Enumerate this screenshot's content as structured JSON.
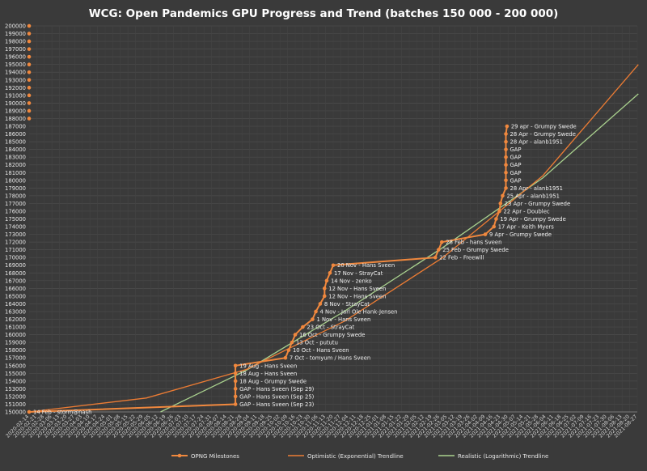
{
  "chart_data": {
    "type": "line",
    "title": "WCG: Open Pandemics GPU Progress and Trend (batches 150 000 - 200 000)",
    "xlabel": "",
    "ylabel": "",
    "ylim": [
      150000,
      200000
    ],
    "grid": true,
    "legend_position": "bottom",
    "y_ticks": [
      150000,
      151000,
      152000,
      153000,
      154000,
      155000,
      156000,
      157000,
      158000,
      159000,
      160000,
      161000,
      162000,
      163000,
      164000,
      165000,
      166000,
      167000,
      168000,
      169000,
      170000,
      171000,
      172000,
      173000,
      174000,
      175000,
      176000,
      177000,
      178000,
      179000,
      180000,
      181000,
      182000,
      183000,
      184000,
      185000,
      186000,
      187000,
      188000,
      189000,
      190000,
      191000,
      192000,
      193000,
      194000,
      195000,
      196000,
      197000,
      198000,
      199000,
      200000
    ],
    "x_tick_labels": [
      "2020-02-14",
      "2020-02-21",
      "2020-02-28",
      "2020-03-06",
      "2020-03-13",
      "2020-03-20",
      "2020-03-27",
      "2020-04-03",
      "2020-04-10",
      "2020-04-17",
      "2020-04-24",
      "2020-05-01",
      "2020-05-08",
      "2020-05-15",
      "2020-05-22",
      "2020-05-29",
      "2020-06-05",
      "2020-06-12",
      "2020-06-19",
      "2020-06-26",
      "2020-07-03",
      "2020-07-10",
      "2020-07-17",
      "2020-07-24",
      "2020-07-31",
      "2020-08-07",
      "2020-08-14",
      "2020-08-21",
      "2020-08-28",
      "2020-09-04",
      "2020-09-11",
      "2020-09-18",
      "2020-09-25",
      "2020-10-02",
      "2020-10-09",
      "2020-10-16",
      "2020-10-23",
      "2020-10-30",
      "2020-11-06",
      "2020-11-13",
      "2020-11-20",
      "2020-11-27",
      "2020-12-04",
      "2020-12-11",
      "2020-12-18",
      "2020-12-25",
      "2021-01-01",
      "2021-01-08",
      "2021-01-15",
      "2021-01-22",
      "2021-01-29",
      "2021-02-05",
      "2021-02-12",
      "2021-02-19",
      "2021-02-26",
      "2021-03-05",
      "2021-03-12",
      "2021-03-19",
      "2021-03-26",
      "2021-04-02",
      "2021-04-09",
      "2021-04-16",
      "2021-04-23",
      "2021-04-30",
      "2021-05-07",
      "2021-05-14",
      "2021-05-21",
      "2021-05-28",
      "2021-06-04",
      "2021-06-11",
      "2021-06-18",
      "2021-06-25",
      "2021-07-02",
      "2021-07-09",
      "2021-07-16",
      "2021-07-23",
      "2021-07-30",
      "2021-08-06",
      "2021-08-13",
      "2021-08-20",
      "2021-08-27"
    ],
    "series": [
      {
        "name": "OPNG Milestones",
        "color": "#f0883e",
        "points": [
          {
            "x": "2020-02-14",
            "y": 150000,
            "label": "14 Feb - storm@nash"
          },
          {
            "x": "2020-08-22",
            "y": 151000,
            "label": "GAP - Hans Sveen (Sep 23)"
          },
          {
            "x": "2020-08-22",
            "y": 152000,
            "label": "GAP - Hans Sveen (Sep 25)"
          },
          {
            "x": "2020-08-22",
            "y": 153000,
            "label": "GAP - Hans Sveen (Sep 29)"
          },
          {
            "x": "2020-08-22",
            "y": 154000,
            "label": "18 Aug - Grumpy Swede"
          },
          {
            "x": "2020-08-22",
            "y": 155000,
            "label": "18 Aug - Hans Sveen"
          },
          {
            "x": "2020-08-22",
            "y": 156000,
            "label": "19 Aug - Hans Sveen"
          },
          {
            "x": "2020-10-07",
            "y": 157000,
            "label": "7 Oct - tomyum / Hans Sveen"
          },
          {
            "x": "2020-10-10",
            "y": 158000,
            "label": "10 Oct - Hans Sveen"
          },
          {
            "x": "2020-10-13",
            "y": 159000,
            "label": "13 Oct - pututu"
          },
          {
            "x": "2020-10-16",
            "y": 160000,
            "label": "16 Oct - Grumpy Swede"
          },
          {
            "x": "2020-10-23",
            "y": 161000,
            "label": "23 Oct - StrayCat"
          },
          {
            "x": "2020-11-01",
            "y": 162000,
            "label": "1 Nov - Hans Sveen"
          },
          {
            "x": "2020-11-04",
            "y": 163000,
            "label": "4 Nov - Jarl Ole Hank-Jensen"
          },
          {
            "x": "2020-11-08",
            "y": 164000,
            "label": "8 Nov - StrayCat"
          },
          {
            "x": "2020-11-12",
            "y": 165000,
            "label": "12 Nov - Hans Sveen"
          },
          {
            "x": "2020-11-12",
            "y": 166000,
            "label": "12 Nov - Hans Sveen"
          },
          {
            "x": "2020-11-14",
            "y": 167000,
            "label": "14 Nov - zenko"
          },
          {
            "x": "2020-11-17",
            "y": 168000,
            "label": "17 Nov - StrayCat"
          },
          {
            "x": "2020-11-20",
            "y": 169000,
            "label": "20 Nov - Hans Sveen"
          },
          {
            "x": "2021-02-22",
            "y": 170000,
            "label": "22 Feb - Freewill"
          },
          {
            "x": "2021-02-25",
            "y": 171000,
            "label": "25 Feb - Grumpy Swede"
          },
          {
            "x": "2021-02-28",
            "y": 172000,
            "label": "28 Feb - hans Sveen"
          },
          {
            "x": "2021-04-09",
            "y": 173000,
            "label": "9 Apr - Grumpy Swede"
          },
          {
            "x": "2021-04-17",
            "y": 174000,
            "label": "17 Apr - Keith Myers"
          },
          {
            "x": "2021-04-19",
            "y": 175000,
            "label": "19 Apr - Grumpy Swede"
          },
          {
            "x": "2021-04-22",
            "y": 176000,
            "label": "22 Apr - Doublec"
          },
          {
            "x": "2021-04-23",
            "y": 177000,
            "label": "23 Apr - Grumpy Swede"
          },
          {
            "x": "2021-04-25",
            "y": 178000,
            "label": "25 Apr - alanb1951"
          },
          {
            "x": "2021-04-28",
            "y": 179000,
            "label": "28 Apr - alanb1951"
          },
          {
            "x": "2021-04-28",
            "y": 180000,
            "label": "GAP"
          },
          {
            "x": "2021-04-28",
            "y": 181000,
            "label": "GAP"
          },
          {
            "x": "2021-04-28",
            "y": 182000,
            "label": "GAP"
          },
          {
            "x": "2021-04-28",
            "y": 183000,
            "label": "GAP"
          },
          {
            "x": "2021-04-28",
            "y": 184000,
            "label": "GAP"
          },
          {
            "x": "2021-04-28",
            "y": 185000,
            "label": "28 Apr - alanb1951"
          },
          {
            "x": "2021-04-28",
            "y": 186000,
            "label": "28 Apr - Grumpy Swede"
          },
          {
            "x": "2021-04-29",
            "y": 187000,
            "label": "29 apr - Grumpy Swede"
          }
        ],
        "unreached_y": [
          188000,
          189000,
          190000,
          191000,
          192000,
          193000,
          194000,
          195000,
          196000,
          197000,
          198000,
          199000,
          200000
        ]
      },
      {
        "name": "Optimistic (Exponential) Trendline",
        "color": "#ec7c34",
        "points": [
          {
            "x": "2020-02-14",
            "y": 150000
          },
          {
            "x": "2020-06-01",
            "y": 151800
          },
          {
            "x": "2020-09-01",
            "y": 155500
          },
          {
            "x": "2020-12-01",
            "y": 161800
          },
          {
            "x": "2021-03-01",
            "y": 170000
          },
          {
            "x": "2021-06-01",
            "y": 180600
          },
          {
            "x": "2021-08-28",
            "y": 195000
          }
        ]
      },
      {
        "name": "Realistic (Logarithmic) Trendline",
        "color": "#a9d18e",
        "points": [
          {
            "x": "2020-06-14",
            "y": 150000
          },
          {
            "x": "2020-09-01",
            "y": 155400
          },
          {
            "x": "2020-12-01",
            "y": 163100
          },
          {
            "x": "2021-03-01",
            "y": 171300
          },
          {
            "x": "2021-06-01",
            "y": 180300
          },
          {
            "x": "2021-08-28",
            "y": 191200
          }
        ]
      }
    ]
  }
}
